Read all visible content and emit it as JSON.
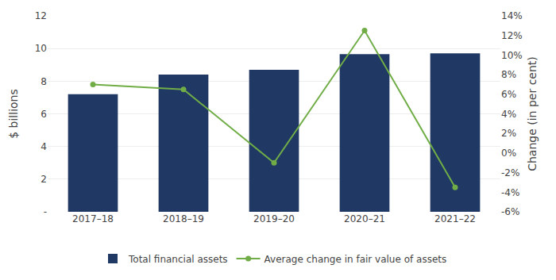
{
  "chart_data": {
    "type": "bar",
    "categories": [
      "2017–18",
      "2018–19",
      "2019–20",
      "2020–21",
      "2021–22"
    ],
    "series": [
      {
        "name": "Total financial assets",
        "type": "bar",
        "color": "#1f3864",
        "values": [
          7.2,
          8.4,
          8.7,
          9.65,
          9.7
        ]
      },
      {
        "name": "Average change in fair value of assets",
        "type": "line",
        "axis": "y2",
        "color": "#70ad47",
        "marker": "circle",
        "values": [
          7.0,
          6.5,
          -1.0,
          12.5,
          -3.5
        ]
      }
    ],
    "ylabel": "$ billions",
    "y2label": "Change (in per cent)",
    "ylim": [
      0,
      12
    ],
    "yticks": [
      {
        "value": 0,
        "label": "-"
      },
      2,
      4,
      6,
      8,
      10,
      12
    ],
    "y2lim": [
      -6,
      14
    ],
    "y2ticks": [
      {
        "value": -6,
        "label": "-6%"
      },
      {
        "value": -4,
        "label": "-4%"
      },
      {
        "value": -2,
        "label": "-2%"
      },
      {
        "value": 0,
        "label": "0%"
      },
      {
        "value": 2,
        "label": "2%"
      },
      {
        "value": 4,
        "label": "4%"
      },
      {
        "value": 6,
        "label": "6%"
      },
      {
        "value": 8,
        "label": "8%"
      },
      {
        "value": 10,
        "label": "10%"
      },
      {
        "value": 12,
        "label": "12%"
      },
      {
        "value": 14,
        "label": "14%"
      }
    ],
    "grid": true,
    "legend": "bottom"
  }
}
